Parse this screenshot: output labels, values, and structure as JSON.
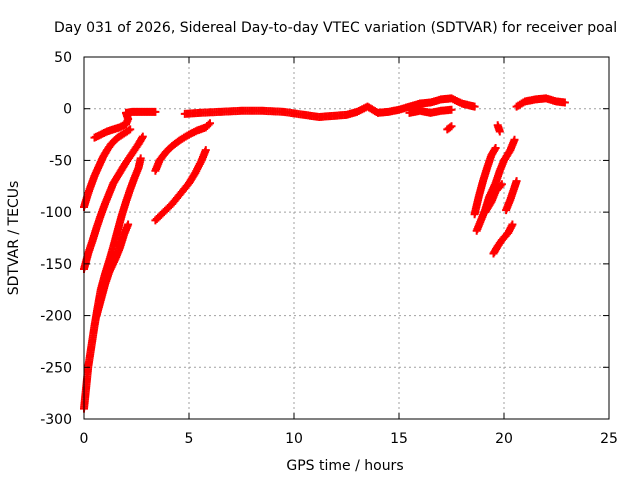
{
  "chart_data": {
    "type": "scatter",
    "title": "Day 031 of 2026, Sidereal Day-to-day VTEC variation (SDTVAR) for receiver poal",
    "xlabel": "GPS time / hours",
    "ylabel": "SDTVAR / TECUs",
    "xlim": [
      0,
      25
    ],
    "ylim": [
      -300,
      50
    ],
    "xticks": [
      0,
      5,
      10,
      15,
      20,
      25
    ],
    "yticks": [
      -300,
      -250,
      -200,
      -150,
      -100,
      -50,
      0,
      50
    ],
    "xtick_labels": [
      "0",
      "5",
      "10",
      "15",
      "20",
      "25"
    ],
    "ytick_labels": [
      "-300",
      "-250",
      "-200",
      "-150",
      "-100",
      "-50",
      "0",
      "50"
    ],
    "grid": true,
    "marker": "+",
    "color": "#ff0000",
    "series": [
      {
        "values": [
          [
            0.0,
            -95
          ],
          [
            0.15,
            -85
          ],
          [
            0.3,
            -76
          ],
          [
            0.5,
            -65
          ],
          [
            0.7,
            -56
          ],
          [
            0.9,
            -47
          ],
          [
            1.1,
            -40
          ],
          [
            1.3,
            -34
          ],
          [
            1.6,
            -28
          ],
          [
            1.9,
            -24
          ],
          [
            2.2,
            -20
          ]
        ]
      },
      {
        "values": [
          [
            0.5,
            -28
          ],
          [
            0.8,
            -25
          ],
          [
            1.1,
            -22
          ],
          [
            1.4,
            -20
          ],
          [
            1.7,
            -18
          ],
          [
            2.0,
            -15
          ],
          [
            2.1,
            -10
          ],
          [
            2.0,
            -4
          ],
          [
            2.3,
            -3
          ],
          [
            2.6,
            -3
          ],
          [
            3.0,
            -3
          ],
          [
            3.4,
            -3
          ]
        ]
      },
      {
        "values": [
          [
            0.0,
            -155
          ],
          [
            0.2,
            -140
          ],
          [
            0.4,
            -128
          ],
          [
            0.6,
            -115
          ],
          [
            0.8,
            -103
          ],
          [
            1.0,
            -92
          ],
          [
            1.2,
            -82
          ],
          [
            1.4,
            -72
          ],
          [
            1.7,
            -62
          ],
          [
            2.0,
            -52
          ],
          [
            2.3,
            -43
          ],
          [
            2.6,
            -34
          ],
          [
            2.8,
            -27
          ]
        ]
      },
      {
        "values": [
          [
            0.0,
            -290
          ],
          [
            0.1,
            -270
          ],
          [
            0.2,
            -250
          ],
          [
            0.35,
            -230
          ],
          [
            0.5,
            -210
          ],
          [
            0.65,
            -192
          ],
          [
            0.8,
            -175
          ],
          [
            1.0,
            -160
          ],
          [
            1.2,
            -147
          ],
          [
            1.4,
            -133
          ],
          [
            1.6,
            -118
          ],
          [
            1.8,
            -103
          ],
          [
            2.0,
            -90
          ],
          [
            2.2,
            -78
          ],
          [
            2.4,
            -67
          ],
          [
            2.6,
            -57
          ],
          [
            2.7,
            -48
          ]
        ]
      },
      {
        "values": [
          [
            0.6,
            -200
          ],
          [
            0.8,
            -185
          ],
          [
            1.0,
            -170
          ],
          [
            1.2,
            -158
          ],
          [
            1.5,
            -145
          ],
          [
            1.7,
            -135
          ],
          [
            1.9,
            -122
          ],
          [
            2.1,
            -112
          ]
        ]
      },
      {
        "values": [
          [
            3.4,
            -60
          ],
          [
            3.6,
            -50
          ],
          [
            3.9,
            -42
          ],
          [
            4.2,
            -36
          ],
          [
            4.6,
            -30
          ],
          [
            5.0,
            -25
          ],
          [
            5.4,
            -21
          ],
          [
            5.8,
            -18
          ],
          [
            6.0,
            -14
          ]
        ]
      },
      {
        "values": [
          [
            3.4,
            -108
          ],
          [
            3.8,
            -100
          ],
          [
            4.2,
            -92
          ],
          [
            4.6,
            -82
          ],
          [
            5.0,
            -72
          ],
          [
            5.3,
            -62
          ],
          [
            5.6,
            -50
          ],
          [
            5.8,
            -40
          ]
        ]
      },
      {
        "values": [
          [
            4.8,
            -5
          ],
          [
            5.5,
            -4
          ],
          [
            6.5,
            -3
          ],
          [
            7.5,
            -2
          ],
          [
            8.5,
            -2
          ],
          [
            9.5,
            -3
          ],
          [
            10.5,
            -6
          ],
          [
            11.2,
            -8
          ],
          [
            11.8,
            -7
          ],
          [
            12.5,
            -6
          ],
          [
            13.0,
            -3
          ],
          [
            13.5,
            2
          ],
          [
            14.0,
            -4
          ],
          [
            14.5,
            -3
          ],
          [
            15.0,
            -1
          ],
          [
            15.5,
            2
          ],
          [
            16.0,
            5
          ],
          [
            16.5,
            6
          ],
          [
            17.0,
            9
          ],
          [
            17.5,
            10
          ],
          [
            18.0,
            5
          ],
          [
            18.4,
            3
          ],
          [
            18.6,
            2
          ]
        ]
      },
      {
        "values": [
          [
            15.5,
            -4
          ],
          [
            16.0,
            -2
          ],
          [
            16.5,
            -4
          ],
          [
            17.0,
            -2
          ],
          [
            17.5,
            -1
          ]
        ]
      },
      {
        "values": [
          [
            17.3,
            -20
          ],
          [
            17.5,
            -17
          ]
        ]
      },
      {
        "values": [
          [
            18.6,
            -102
          ],
          [
            18.8,
            -85
          ],
          [
            19.0,
            -70
          ],
          [
            19.2,
            -57
          ],
          [
            19.4,
            -45
          ],
          [
            19.6,
            -38
          ]
        ]
      },
      {
        "values": [
          [
            18.7,
            -118
          ],
          [
            18.9,
            -108
          ],
          [
            19.1,
            -98
          ],
          [
            19.3,
            -85
          ],
          [
            19.6,
            -72
          ],
          [
            19.8,
            -60
          ],
          [
            20.0,
            -50
          ],
          [
            20.3,
            -40
          ],
          [
            20.5,
            -30
          ]
        ]
      },
      {
        "values": [
          [
            19.1,
            -100
          ],
          [
            19.4,
            -90
          ],
          [
            19.6,
            -80
          ],
          [
            19.9,
            -73
          ]
        ]
      },
      {
        "values": [
          [
            19.7,
            -16
          ],
          [
            19.8,
            -22
          ]
        ]
      },
      {
        "values": [
          [
            19.5,
            -140
          ],
          [
            19.7,
            -133
          ],
          [
            19.9,
            -127
          ],
          [
            20.2,
            -120
          ],
          [
            20.4,
            -112
          ]
        ]
      },
      {
        "values": [
          [
            20.1,
            -98
          ],
          [
            20.3,
            -88
          ],
          [
            20.5,
            -76
          ],
          [
            20.6,
            -70
          ]
        ]
      },
      {
        "values": [
          [
            20.6,
            2
          ],
          [
            21.0,
            7
          ],
          [
            21.5,
            9
          ],
          [
            22.0,
            10
          ],
          [
            22.5,
            7
          ],
          [
            22.9,
            6
          ]
        ]
      }
    ]
  }
}
